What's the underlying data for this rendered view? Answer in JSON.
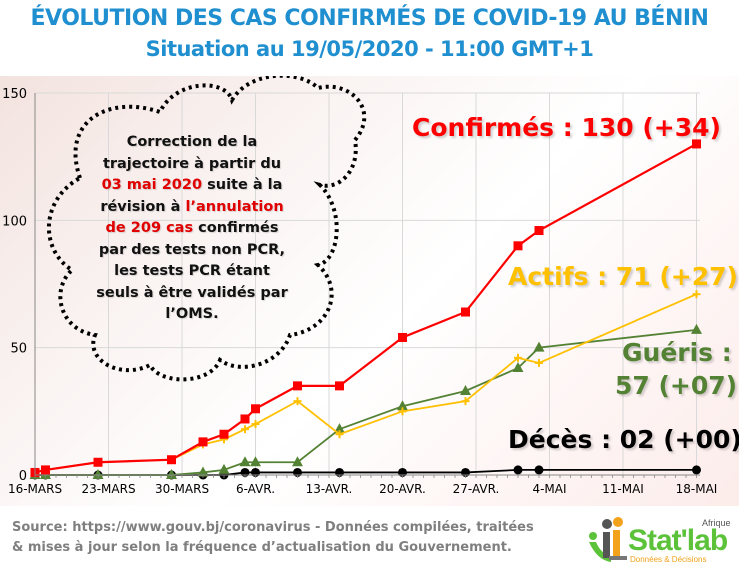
{
  "header": {
    "title": "ÉVOLUTION DES CAS CONFIRMÉS DE COVID-19 AU BÉNIN",
    "subtitle": "Situation au 19/05/2020 - 11:00 GMT+1"
  },
  "annotation": {
    "part1": "Correction de la trajectoire à partir du ",
    "highlight1": "03 mai 2020",
    "part2": " suite à la révision à ",
    "highlight2": "l’annulation de 209 cas",
    "part3": " confirmés par des tests non PCR, les tests PCR étant seuls à être validés par l’OMS."
  },
  "labels": {
    "confirmes": "Confirmés :  130 (+34)",
    "actifs": "Actifs : 71 (+27)",
    "gueris_line1": "Guéris :",
    "gueris_line2": "57 (+07)",
    "deces": "Décès : 02 (+00)"
  },
  "footer": {
    "source_line1": "Source: https://www.gouv.bj/coronavirus - Données compilées, traitées",
    "source_line2": "& mises à jour selon la fréquence d’actualisation du Gouvernement.",
    "logo_word": "Stat'lab",
    "logo_sup": "Afrique",
    "logo_sub": "Données & Décisions"
  },
  "colors": {
    "title": "#1f8fd0",
    "confirmes": "#ff0000",
    "actifs": "#ffc000",
    "gueris": "#548235",
    "deces": "#000000"
  },
  "chart_data": {
    "type": "line",
    "title": "ÉVOLUTION DES CAS CONFIRMÉS DE COVID-19 AU BÉNIN",
    "subtitle": "Situation au 19/05/2020 - 11:00 GMT+1",
    "xlabel": "",
    "ylabel": "",
    "ylim": [
      0,
      150
    ],
    "yticks": [
      0,
      50,
      100,
      150
    ],
    "xticks": [
      "16-MARS",
      "23-MARS",
      "30-MARS",
      "6-AVR.",
      "13-AVR.",
      "20-AVR.",
      "27-AVR.",
      "4-MAI",
      "11-MAI",
      "18-MAI"
    ],
    "grid": true,
    "legend": "inline text labels on right",
    "x_day_offsets_from_16_mars": [
      0,
      1,
      6,
      13,
      16,
      18,
      20,
      21,
      25,
      29,
      35,
      41,
      46,
      48,
      63
    ],
    "x": [
      "16-MARS",
      "17-MARS",
      "22-MARS",
      "29-MARS",
      "1-AVR.",
      "3-AVR.",
      "5-AVR.",
      "6-AVR.",
      "10-AVR.",
      "14-AVR.",
      "20-AVR.",
      "26-AVR.",
      "1-MAI",
      "3-MAI",
      "18-MAI"
    ],
    "series": [
      {
        "name": "Confirmés",
        "color": "#ff0000",
        "marker": "square",
        "values": [
          1,
          2,
          5,
          6,
          13,
          16,
          22,
          26,
          35,
          35,
          54,
          64,
          90,
          96,
          130
        ]
      },
      {
        "name": "Actifs",
        "color": "#ffc000",
        "marker": "plus",
        "values": [
          1,
          2,
          5,
          6,
          12,
          14,
          18,
          20,
          29,
          16,
          25,
          29,
          46,
          44,
          71
        ]
      },
      {
        "name": "Guéris",
        "color": "#548235",
        "marker": "triangle",
        "values": [
          0,
          0,
          0,
          0,
          1,
          2,
          5,
          5,
          5,
          18,
          27,
          33,
          42,
          50,
          57
        ]
      },
      {
        "name": "Décès",
        "color": "#000000",
        "marker": "circle",
        "values": [
          0,
          0,
          0,
          0,
          0,
          0,
          1,
          1,
          1,
          1,
          1,
          1,
          2,
          2,
          2
        ]
      }
    ]
  }
}
